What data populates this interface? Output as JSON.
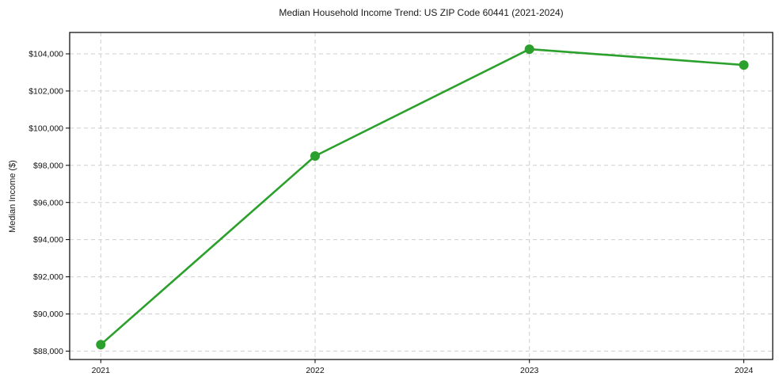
{
  "chart_data": {
    "type": "line",
    "title": "Median Household Income Trend: US ZIP Code 60441 (2021-2024)",
    "xlabel": "",
    "ylabel": "Median Income ($)",
    "x": [
      2021,
      2022,
      2023,
      2024
    ],
    "xtick_labels": [
      "2021",
      "2022",
      "2023",
      "2024"
    ],
    "series": [
      {
        "color": "#2ca02c",
        "marker": "circle",
        "values": [
          88350,
          98500,
          104250,
          103400
        ]
      }
    ],
    "yticks": [
      {
        "value": 88000,
        "label": "$88,000"
      },
      {
        "value": 90000,
        "label": "$90,000"
      },
      {
        "value": 92000,
        "label": "$92,000"
      },
      {
        "value": 94000,
        "label": "$94,000"
      },
      {
        "value": 96000,
        "label": "$96,000"
      },
      {
        "value": 98000,
        "label": "$98,000"
      },
      {
        "value": 100000,
        "label": "$100,000"
      },
      {
        "value": 102000,
        "label": "$102,000"
      },
      {
        "value": 104000,
        "label": "$104,000"
      }
    ],
    "ylim": [
      87550,
      105150
    ],
    "xlim": [
      2020.855,
      2024.135
    ],
    "grid": true,
    "legend_position": "none",
    "background_color": "#ffffff",
    "grid_color": "#cfcfcf",
    "axis_color": "#000000",
    "tick_text_color": "#111111",
    "line_width": 2.6,
    "marker_radius": 6
  }
}
